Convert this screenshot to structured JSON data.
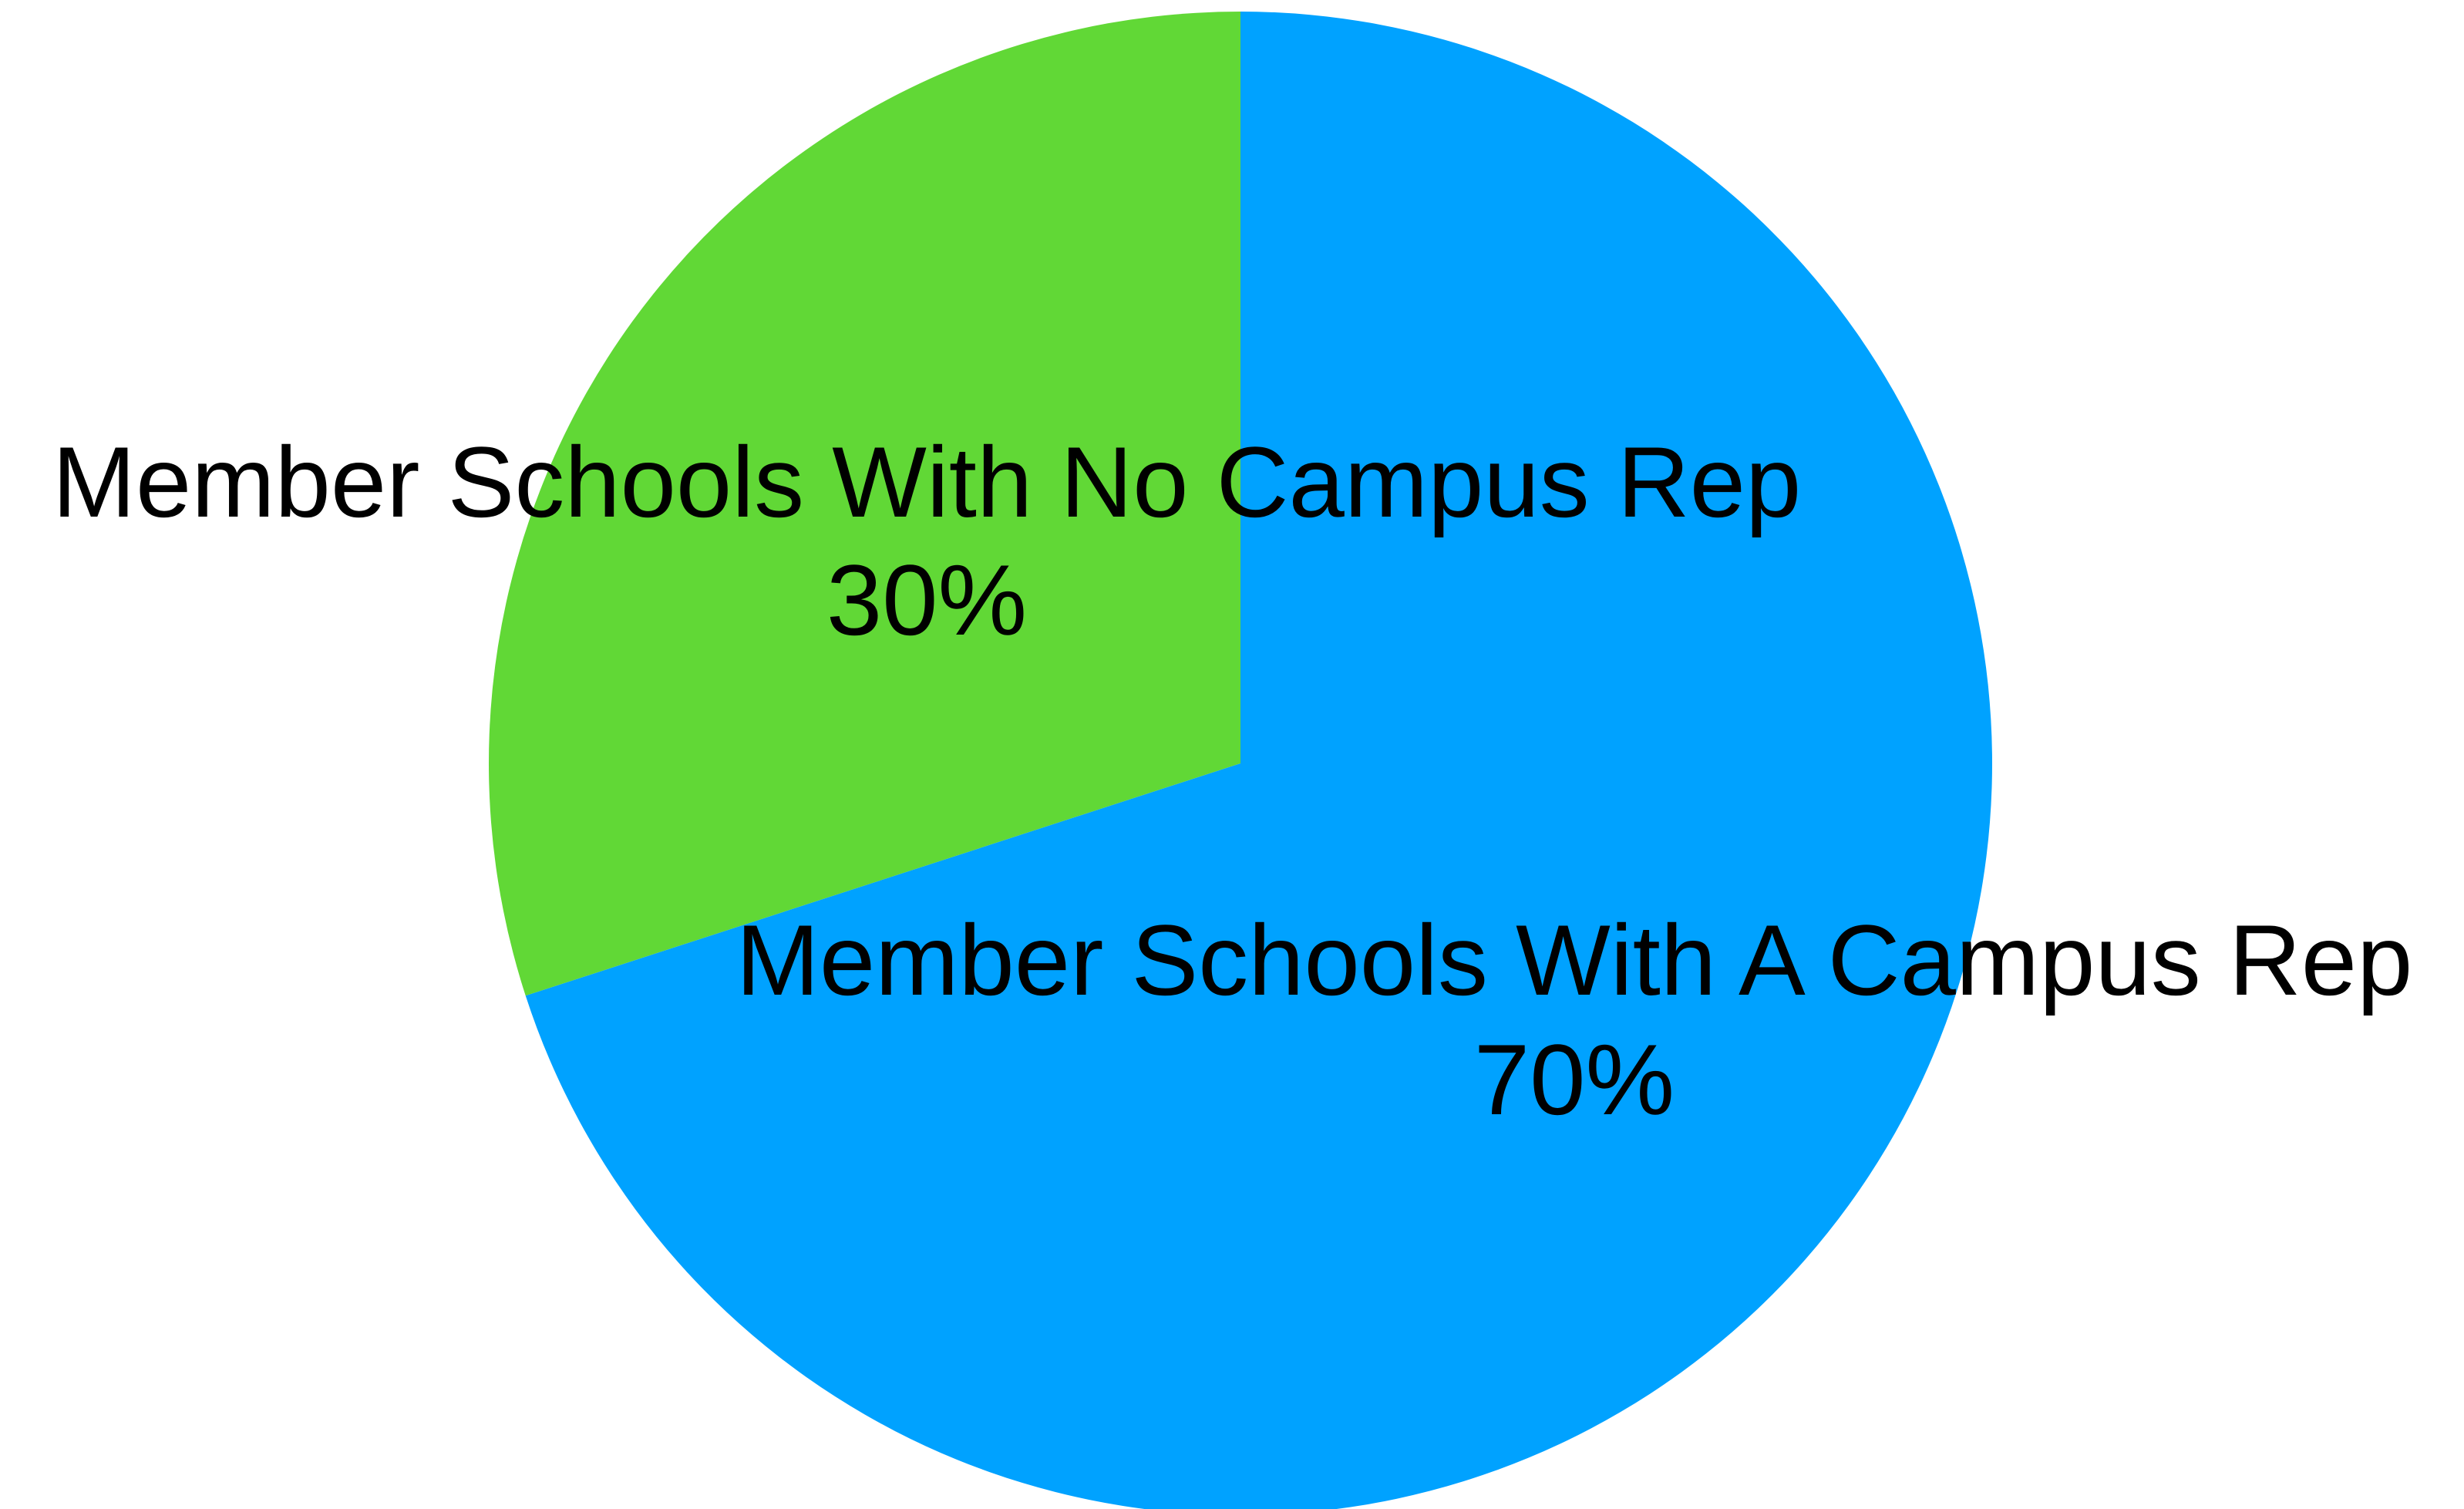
{
  "chart_data": {
    "type": "pie",
    "title": "",
    "slices": [
      {
        "label": "Member Schools With A Campus Rep",
        "value": 70,
        "value_label": "70%",
        "color": "#00a2ff"
      },
      {
        "label": "Member Schools With No Campus Rep",
        "value": 30,
        "value_label": "30%",
        "color": "#61d836"
      }
    ],
    "start_angle": "12 o'clock",
    "direction": "clockwise",
    "legend": "none",
    "labels": "on slices"
  }
}
